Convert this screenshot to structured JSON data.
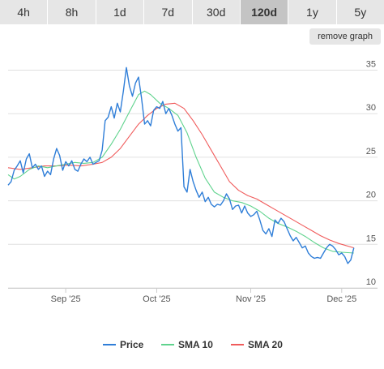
{
  "tabs": [
    {
      "label": "4h",
      "active": false
    },
    {
      "label": "8h",
      "active": false
    },
    {
      "label": "1d",
      "active": false
    },
    {
      "label": "7d",
      "active": false
    },
    {
      "label": "30d",
      "active": false
    },
    {
      "label": "120d",
      "active": true
    },
    {
      "label": "1y",
      "active": false
    },
    {
      "label": "5y",
      "active": false
    }
  ],
  "remove_graph_label": "remove graph",
  "colors": {
    "price": "#2f7ed8",
    "sma10": "#5fd38d",
    "sma20": "#f05b5b",
    "grid": "#e0e0e0",
    "tab_active": "#c4c4c4",
    "tab": "#e6e6e6"
  },
  "chart_data": {
    "type": "line",
    "ylim": [
      10,
      37
    ],
    "yticks": [
      10,
      15,
      20,
      25,
      30,
      35
    ],
    "xlim": [
      "2025-08-13",
      "2025-12-08"
    ],
    "xticks": [
      {
        "label": "Sep '25",
        "date": "2025-09-01"
      },
      {
        "label": "Oct '25",
        "date": "2025-10-01"
      },
      {
        "label": "Nov '25",
        "date": "2025-11-01"
      },
      {
        "label": "Dec '25",
        "date": "2025-12-01"
      }
    ],
    "legend_position": "bottom",
    "grid": true,
    "series": [
      {
        "name": "Price",
        "color": "#2f7ed8",
        "points": [
          [
            "2025-08-13",
            21.8
          ],
          [
            "2025-08-14",
            22.2
          ],
          [
            "2025-08-15",
            23.5
          ],
          [
            "2025-08-16",
            24.0
          ],
          [
            "2025-08-17",
            24.6
          ],
          [
            "2025-08-18",
            23.2
          ],
          [
            "2025-08-19",
            24.8
          ],
          [
            "2025-08-20",
            25.4
          ],
          [
            "2025-08-21",
            23.8
          ],
          [
            "2025-08-22",
            24.2
          ],
          [
            "2025-08-23",
            23.6
          ],
          [
            "2025-08-24",
            24.0
          ],
          [
            "2025-08-25",
            22.8
          ],
          [
            "2025-08-26",
            23.4
          ],
          [
            "2025-08-27",
            23.0
          ],
          [
            "2025-08-28",
            24.8
          ],
          [
            "2025-08-29",
            26.0
          ],
          [
            "2025-08-30",
            25.2
          ],
          [
            "2025-08-31",
            23.5
          ],
          [
            "2025-09-01",
            24.5
          ],
          [
            "2025-09-02",
            24.0
          ],
          [
            "2025-09-03",
            24.6
          ],
          [
            "2025-09-04",
            23.6
          ],
          [
            "2025-09-05",
            23.4
          ],
          [
            "2025-09-06",
            24.2
          ],
          [
            "2025-09-07",
            24.8
          ],
          [
            "2025-09-08",
            24.5
          ],
          [
            "2025-09-09",
            25.0
          ],
          [
            "2025-09-10",
            24.2
          ],
          [
            "2025-09-11",
            24.4
          ],
          [
            "2025-09-12",
            24.6
          ],
          [
            "2025-09-13",
            25.8
          ],
          [
            "2025-09-14",
            29.2
          ],
          [
            "2025-09-15",
            29.6
          ],
          [
            "2025-09-16",
            30.8
          ],
          [
            "2025-09-17",
            29.5
          ],
          [
            "2025-09-18",
            31.2
          ],
          [
            "2025-09-19",
            30.2
          ],
          [
            "2025-09-20",
            32.6
          ],
          [
            "2025-09-21",
            35.3
          ],
          [
            "2025-09-22",
            33.2
          ],
          [
            "2025-09-23",
            32.0
          ],
          [
            "2025-09-24",
            33.5
          ],
          [
            "2025-09-25",
            34.2
          ],
          [
            "2025-09-26",
            31.8
          ],
          [
            "2025-09-27",
            28.8
          ],
          [
            "2025-09-28",
            29.2
          ],
          [
            "2025-09-29",
            28.6
          ],
          [
            "2025-09-30",
            30.4
          ],
          [
            "2025-10-01",
            30.8
          ],
          [
            "2025-10-02",
            30.6
          ],
          [
            "2025-10-03",
            31.4
          ],
          [
            "2025-10-04",
            30.0
          ],
          [
            "2025-10-05",
            30.6
          ],
          [
            "2025-10-06",
            29.8
          ],
          [
            "2025-10-07",
            28.8
          ],
          [
            "2025-10-08",
            28.0
          ],
          [
            "2025-10-09",
            28.4
          ],
          [
            "2025-10-10",
            21.6
          ],
          [
            "2025-10-11",
            21.0
          ],
          [
            "2025-10-12",
            23.6
          ],
          [
            "2025-10-13",
            22.2
          ],
          [
            "2025-10-14",
            21.2
          ],
          [
            "2025-10-15",
            20.4
          ],
          [
            "2025-10-16",
            21.0
          ],
          [
            "2025-10-17",
            19.9
          ],
          [
            "2025-10-18",
            20.4
          ],
          [
            "2025-10-19",
            19.6
          ],
          [
            "2025-10-20",
            19.3
          ],
          [
            "2025-10-21",
            19.6
          ],
          [
            "2025-10-22",
            19.5
          ],
          [
            "2025-10-23",
            20.0
          ],
          [
            "2025-10-24",
            20.8
          ],
          [
            "2025-10-25",
            20.2
          ],
          [
            "2025-10-26",
            19.0
          ],
          [
            "2025-10-27",
            19.4
          ],
          [
            "2025-10-28",
            19.5
          ],
          [
            "2025-10-29",
            18.6
          ],
          [
            "2025-10-30",
            19.4
          ],
          [
            "2025-10-31",
            18.6
          ],
          [
            "2025-11-01",
            18.2
          ],
          [
            "2025-11-02",
            18.4
          ],
          [
            "2025-11-03",
            18.8
          ],
          [
            "2025-11-04",
            17.8
          ],
          [
            "2025-11-05",
            16.6
          ],
          [
            "2025-11-06",
            16.2
          ],
          [
            "2025-11-07",
            16.8
          ],
          [
            "2025-11-08",
            15.9
          ],
          [
            "2025-11-09",
            17.8
          ],
          [
            "2025-11-10",
            17.4
          ],
          [
            "2025-11-11",
            18.0
          ],
          [
            "2025-11-12",
            17.6
          ],
          [
            "2025-11-13",
            16.8
          ],
          [
            "2025-11-14",
            16.0
          ],
          [
            "2025-11-15",
            15.4
          ],
          [
            "2025-11-16",
            15.8
          ],
          [
            "2025-11-17",
            15.2
          ],
          [
            "2025-11-18",
            14.6
          ],
          [
            "2025-11-19",
            14.8
          ],
          [
            "2025-11-20",
            14.0
          ],
          [
            "2025-11-21",
            13.6
          ],
          [
            "2025-11-22",
            13.4
          ],
          [
            "2025-11-23",
            13.5
          ],
          [
            "2025-11-24",
            13.4
          ],
          [
            "2025-11-25",
            14.0
          ],
          [
            "2025-11-26",
            14.6
          ],
          [
            "2025-11-27",
            15.0
          ],
          [
            "2025-11-28",
            14.8
          ],
          [
            "2025-11-29",
            14.4
          ],
          [
            "2025-11-30",
            13.8
          ],
          [
            "2025-12-01",
            14.0
          ],
          [
            "2025-12-02",
            13.6
          ],
          [
            "2025-12-03",
            12.8
          ],
          [
            "2025-12-04",
            13.2
          ],
          [
            "2025-12-05",
            14.6
          ]
        ]
      },
      {
        "name": "SMA 10",
        "color": "#5fd38d",
        "points": [
          [
            "2025-08-13",
            23.0
          ],
          [
            "2025-08-15",
            22.5
          ],
          [
            "2025-08-17",
            22.8
          ],
          [
            "2025-08-20",
            23.6
          ],
          [
            "2025-08-23",
            24.0
          ],
          [
            "2025-08-26",
            23.8
          ],
          [
            "2025-08-29",
            24.0
          ],
          [
            "2025-09-01",
            24.2
          ],
          [
            "2025-09-04",
            24.4
          ],
          [
            "2025-09-07",
            24.3
          ],
          [
            "2025-09-10",
            24.4
          ],
          [
            "2025-09-13",
            25.0
          ],
          [
            "2025-09-16",
            26.5
          ],
          [
            "2025-09-19",
            28.2
          ],
          [
            "2025-09-22",
            30.2
          ],
          [
            "2025-09-25",
            32.2
          ],
          [
            "2025-09-27",
            32.6
          ],
          [
            "2025-09-29",
            32.2
          ],
          [
            "2025-10-02",
            31.2
          ],
          [
            "2025-10-05",
            30.6
          ],
          [
            "2025-10-08",
            29.8
          ],
          [
            "2025-10-11",
            27.8
          ],
          [
            "2025-10-14",
            25.0
          ],
          [
            "2025-10-17",
            22.6
          ],
          [
            "2025-10-20",
            21.0
          ],
          [
            "2025-10-23",
            20.4
          ],
          [
            "2025-10-26",
            20.0
          ],
          [
            "2025-10-29",
            19.8
          ],
          [
            "2025-11-01",
            19.4
          ],
          [
            "2025-11-04",
            18.8
          ],
          [
            "2025-11-07",
            18.0
          ],
          [
            "2025-11-10",
            17.4
          ],
          [
            "2025-11-13",
            17.0
          ],
          [
            "2025-11-16",
            16.5
          ],
          [
            "2025-11-19",
            15.9
          ],
          [
            "2025-11-22",
            15.2
          ],
          [
            "2025-11-25",
            14.6
          ],
          [
            "2025-11-28",
            14.2
          ],
          [
            "2025-12-01",
            14.1
          ],
          [
            "2025-12-05",
            14.0
          ]
        ]
      },
      {
        "name": "SMA 20",
        "color": "#f05b5b",
        "points": [
          [
            "2025-08-13",
            23.8
          ],
          [
            "2025-08-17",
            23.6
          ],
          [
            "2025-08-21",
            23.8
          ],
          [
            "2025-08-25",
            24.0
          ],
          [
            "2025-08-29",
            24.0
          ],
          [
            "2025-09-02",
            24.1
          ],
          [
            "2025-09-06",
            24.0
          ],
          [
            "2025-09-10",
            24.2
          ],
          [
            "2025-09-13",
            24.4
          ],
          [
            "2025-09-16",
            25.0
          ],
          [
            "2025-09-19",
            26.0
          ],
          [
            "2025-09-22",
            27.4
          ],
          [
            "2025-09-25",
            28.8
          ],
          [
            "2025-09-28",
            29.8
          ],
          [
            "2025-10-01",
            30.6
          ],
          [
            "2025-10-04",
            31.1
          ],
          [
            "2025-10-07",
            31.2
          ],
          [
            "2025-10-10",
            30.6
          ],
          [
            "2025-10-13",
            29.2
          ],
          [
            "2025-10-16",
            27.6
          ],
          [
            "2025-10-19",
            25.8
          ],
          [
            "2025-10-22",
            24.0
          ],
          [
            "2025-10-25",
            22.2
          ],
          [
            "2025-10-28",
            21.2
          ],
          [
            "2025-10-31",
            20.6
          ],
          [
            "2025-11-03",
            20.2
          ],
          [
            "2025-11-06",
            19.6
          ],
          [
            "2025-11-09",
            19.0
          ],
          [
            "2025-11-12",
            18.4
          ],
          [
            "2025-11-15",
            17.8
          ],
          [
            "2025-11-18",
            17.2
          ],
          [
            "2025-11-21",
            16.6
          ],
          [
            "2025-11-24",
            16.0
          ],
          [
            "2025-11-27",
            15.5
          ],
          [
            "2025-11-30",
            15.1
          ],
          [
            "2025-12-05",
            14.6
          ]
        ]
      }
    ]
  }
}
